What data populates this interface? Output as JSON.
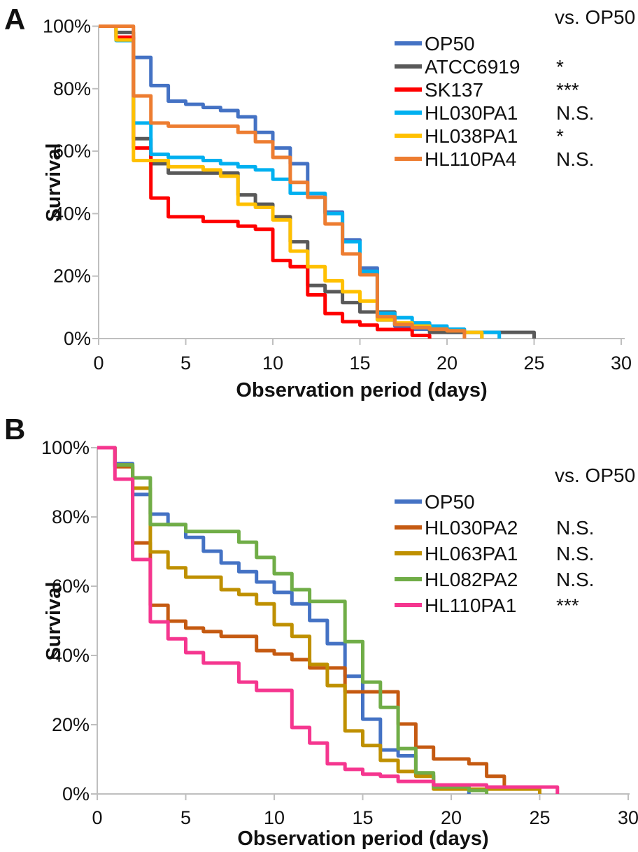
{
  "figure": {
    "background": "#FFFFFF",
    "axis_color": "#BFBFBF",
    "text_color": "#111111",
    "panels": [
      "A",
      "B"
    ]
  },
  "chart_data": [
    {
      "type": "line",
      "step": true,
      "panel_label": "A",
      "legend_header": "vs. OP50",
      "legend_position": "upper right",
      "grid": false,
      "xlabel": "Observation period (days)",
      "ylabel": "Survival",
      "xlim": [
        0,
        30
      ],
      "xticks": [
        0,
        5,
        10,
        15,
        20,
        25,
        30
      ],
      "ylim": [
        0,
        100
      ],
      "yticks": [
        0,
        20,
        40,
        60,
        80,
        100
      ],
      "ytick_labels": [
        "0%",
        "20%",
        "40%",
        "60%",
        "80%",
        "100%"
      ],
      "series": [
        {
          "name": "OP50",
          "color": "#4472C4",
          "significance": "",
          "steps": [
            [
              0,
              100
            ],
            [
              1,
              96
            ],
            [
              2,
              90
            ],
            [
              3,
              81
            ],
            [
              4,
              76
            ],
            [
              5,
              75
            ],
            [
              6,
              74
            ],
            [
              7,
              73
            ],
            [
              8,
              71
            ],
            [
              9,
              66
            ],
            [
              10,
              61
            ],
            [
              11,
              56
            ],
            [
              12,
              46.4
            ],
            [
              13,
              40.5
            ],
            [
              14,
              31.6
            ],
            [
              15,
              22.6
            ],
            [
              16,
              6
            ],
            [
              17,
              4
            ],
            [
              18,
              3
            ],
            [
              20,
              2
            ],
            [
              22,
              0
            ]
          ]
        },
        {
          "name": "ATCC6919",
          "color": "#595959",
          "significance": "*",
          "steps": [
            [
              0,
              100
            ],
            [
              1,
              98
            ],
            [
              2,
              64
            ],
            [
              3,
              56
            ],
            [
              4,
              53
            ],
            [
              8,
              46
            ],
            [
              9,
              43
            ],
            [
              10,
              39
            ],
            [
              11,
              31
            ],
            [
              12,
              17
            ],
            [
              13,
              15
            ],
            [
              14,
              11.5
            ],
            [
              15,
              8.5
            ],
            [
              17,
              4.5
            ],
            [
              19,
              2
            ],
            [
              25,
              0
            ]
          ]
        },
        {
          "name": "SK137",
          "color": "#FF0000",
          "significance": "***",
          "steps": [
            [
              0,
              100
            ],
            [
              1,
              96.5
            ],
            [
              2,
              61
            ],
            [
              3,
              45
            ],
            [
              4,
              39
            ],
            [
              6,
              37.5
            ],
            [
              8,
              36
            ],
            [
              9,
              35
            ],
            [
              10,
              25
            ],
            [
              11,
              23
            ],
            [
              12,
              14
            ],
            [
              13,
              8
            ],
            [
              14,
              5.4
            ],
            [
              15,
              4.3
            ],
            [
              16,
              2.9
            ],
            [
              18,
              1
            ],
            [
              19,
              0
            ]
          ]
        },
        {
          "name": "HL030PA1",
          "color": "#00B0F0",
          "significance": "N.S.",
          "steps": [
            [
              0,
              100
            ],
            [
              1,
              95.4
            ],
            [
              2,
              69
            ],
            [
              3,
              59
            ],
            [
              4,
              58
            ],
            [
              6,
              57
            ],
            [
              7,
              56
            ],
            [
              8,
              55
            ],
            [
              9,
              54
            ],
            [
              10,
              51
            ],
            [
              11,
              46.5
            ],
            [
              13,
              40
            ],
            [
              14,
              31
            ],
            [
              15,
              21.5
            ],
            [
              16,
              8.1
            ],
            [
              17,
              6.7
            ],
            [
              18,
              5
            ],
            [
              19,
              4
            ],
            [
              20,
              3
            ],
            [
              21,
              2
            ],
            [
              23,
              0
            ]
          ]
        },
        {
          "name": "HL038PA1",
          "color": "#FFC000",
          "significance": "*",
          "steps": [
            [
              0,
              100
            ],
            [
              1,
              95.6
            ],
            [
              2,
              57
            ],
            [
              4,
              55
            ],
            [
              6,
              54
            ],
            [
              7,
              52
            ],
            [
              8,
              43
            ],
            [
              9,
              42
            ],
            [
              10,
              38
            ],
            [
              11,
              28
            ],
            [
              12,
              23
            ],
            [
              13,
              18.5
            ],
            [
              14,
              15
            ],
            [
              15,
              12
            ],
            [
              16,
              6
            ],
            [
              17,
              5
            ],
            [
              18,
              4
            ],
            [
              19,
              3
            ],
            [
              20,
              2.5
            ],
            [
              21,
              2
            ],
            [
              22,
              0
            ]
          ]
        },
        {
          "name": "HL110PA4",
          "color": "#ED7D31",
          "significance": "N.S.",
          "steps": [
            [
              0,
              100
            ],
            [
              2,
              77.7
            ],
            [
              3,
              69
            ],
            [
              4,
              68
            ],
            [
              8,
              66
            ],
            [
              9,
              63
            ],
            [
              10,
              58
            ],
            [
              11,
              50
            ],
            [
              12,
              45.2
            ],
            [
              13,
              36.7
            ],
            [
              14,
              27.1
            ],
            [
              15,
              20.4
            ],
            [
              16,
              7
            ],
            [
              17,
              4.5
            ],
            [
              18,
              3.5
            ],
            [
              19,
              3
            ],
            [
              20,
              2.5
            ],
            [
              21,
              0
            ]
          ]
        }
      ]
    },
    {
      "type": "line",
      "step": true,
      "panel_label": "B",
      "legend_header": "vs. OP50",
      "legend_position": "upper right",
      "grid": false,
      "xlabel": "Observation period (days)",
      "ylabel": "Survival",
      "xlim": [
        0,
        30
      ],
      "xticks": [
        0,
        5,
        10,
        15,
        20,
        25,
        30
      ],
      "ylim": [
        0,
        100
      ],
      "yticks": [
        0,
        20,
        40,
        60,
        80,
        100
      ],
      "ytick_labels": [
        "0%",
        "20%",
        "40%",
        "60%",
        "80%",
        "100%"
      ],
      "series": [
        {
          "name": "OP50",
          "color": "#4472C4",
          "significance": "",
          "steps": [
            [
              0,
              100
            ],
            [
              1,
              95.4
            ],
            [
              2,
              86.5
            ],
            [
              3,
              80.8
            ],
            [
              4,
              77.8
            ],
            [
              5,
              74.1
            ],
            [
              6,
              70.1
            ],
            [
              7,
              66.7
            ],
            [
              8,
              64.2
            ],
            [
              9,
              61.2
            ],
            [
              10,
              58.2
            ],
            [
              11,
              54.9
            ],
            [
              12,
              50.1
            ],
            [
              13,
              43.4
            ],
            [
              14,
              34
            ],
            [
              15,
              21.6
            ],
            [
              16,
              12.7
            ],
            [
              17,
              11
            ],
            [
              18,
              5.4
            ],
            [
              19,
              2.4
            ],
            [
              21,
              0
            ]
          ]
        },
        {
          "name": "HL030PA2",
          "color": "#C55A11",
          "significance": "N.S.",
          "steps": [
            [
              0,
              100
            ],
            [
              1,
              94.5
            ],
            [
              2,
              72.5
            ],
            [
              3,
              54.5
            ],
            [
              4,
              49.9
            ],
            [
              5,
              47.9
            ],
            [
              6,
              46.9
            ],
            [
              7,
              45.5
            ],
            [
              9,
              41.4
            ],
            [
              10,
              40.4
            ],
            [
              11,
              38.8
            ],
            [
              12,
              36.4
            ],
            [
              14,
              29.5
            ],
            [
              17,
              20.2
            ],
            [
              18,
              13.5
            ],
            [
              19,
              10.1
            ],
            [
              21,
              8.7
            ],
            [
              22,
              5.1
            ],
            [
              23,
              1.6
            ],
            [
              25,
              0
            ]
          ]
        },
        {
          "name": "HL063PA1",
          "color": "#BF9000",
          "significance": "N.S.",
          "steps": [
            [
              0,
              100
            ],
            [
              1,
              95
            ],
            [
              2,
              88.3
            ],
            [
              3,
              69.9
            ],
            [
              4,
              65.3
            ],
            [
              5,
              62.6
            ],
            [
              7,
              59
            ],
            [
              8,
              57.6
            ],
            [
              9,
              54.9
            ],
            [
              10,
              48.9
            ],
            [
              11,
              45.5
            ],
            [
              12,
              37.4
            ],
            [
              13,
              31.3
            ],
            [
              14,
              18.2
            ],
            [
              15,
              14
            ],
            [
              16,
              9.7
            ],
            [
              17,
              6.5
            ],
            [
              18,
              5.1
            ],
            [
              19,
              1.4
            ],
            [
              25,
              0
            ]
          ]
        },
        {
          "name": "HL082PA2",
          "color": "#70AD47",
          "significance": "N.S.",
          "steps": [
            [
              0,
              100
            ],
            [
              1,
              95
            ],
            [
              2,
              91.3
            ],
            [
              3,
              77.8
            ],
            [
              5,
              75.8
            ],
            [
              8,
              72.7
            ],
            [
              9,
              68.3
            ],
            [
              10,
              63.6
            ],
            [
              11,
              59
            ],
            [
              12,
              55.6
            ],
            [
              14,
              44
            ],
            [
              15,
              32.3
            ],
            [
              16,
              25
            ],
            [
              17,
              13.1
            ],
            [
              18,
              6.1
            ],
            [
              19,
              2
            ],
            [
              21,
              1
            ],
            [
              22,
              0
            ]
          ]
        },
        {
          "name": "HL110PA1",
          "color": "#F5368F",
          "significance": "***",
          "steps": [
            [
              0,
              100
            ],
            [
              1,
              90.9
            ],
            [
              2,
              67.7
            ],
            [
              3,
              49.7
            ],
            [
              4,
              44.8
            ],
            [
              5,
              40.8
            ],
            [
              6,
              37.8
            ],
            [
              8,
              32.3
            ],
            [
              9,
              29.9
            ],
            [
              11,
              19.2
            ],
            [
              12,
              14.7
            ],
            [
              13,
              8.7
            ],
            [
              14,
              7.1
            ],
            [
              15,
              5.7
            ],
            [
              16,
              5.1
            ],
            [
              17,
              3.6
            ],
            [
              19,
              2.6
            ],
            [
              22,
              2
            ],
            [
              26,
              0
            ]
          ]
        }
      ]
    }
  ]
}
